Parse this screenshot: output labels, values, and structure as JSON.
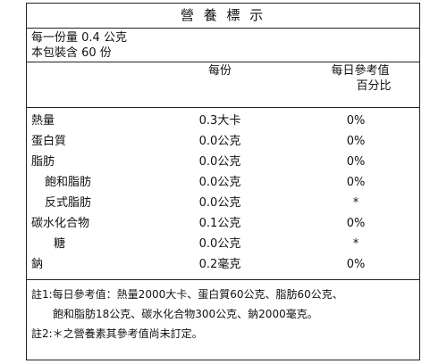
{
  "title": "營 養 標 示",
  "serving": {
    "line1": "每一份量 0.4 公克",
    "line2": "本包裝含 60 份"
  },
  "header": {
    "per_serving": "每份",
    "daily_line1": "每日參考值",
    "daily_line2": "百分比"
  },
  "rows": [
    {
      "name": "熱量",
      "qty": "0.3大卡",
      "pct": "0%"
    },
    {
      "name": "蛋白質",
      "qty": "0.0公克",
      "pct": "0%"
    },
    {
      "name": "脂肪",
      "qty": "0.0公克",
      "pct": "0%"
    },
    {
      "name": "飽和脂肪",
      "qty": "0.0公克",
      "pct": "0%"
    },
    {
      "name": "反式脂肪",
      "qty": "0.0公克",
      "pct": "*"
    },
    {
      "name": "碳水化合物",
      "qty": "0.1公克",
      "pct": "0%"
    },
    {
      "name": "糖",
      "qty": "0.0公克",
      "pct": "*"
    },
    {
      "name": "鈉",
      "qty": "0.2毫克",
      "pct": "0%"
    }
  ],
  "notes": {
    "note1_line1": "註1:每日參考值：熱量2000大卡、蛋白質60公克、脂肪60公克、",
    "note1_line2": "飽和脂肪18公克、碳水化合物300公克、鈉2000毫克。",
    "note2": "註2:＊之營養素其參考值尚未訂定。"
  }
}
